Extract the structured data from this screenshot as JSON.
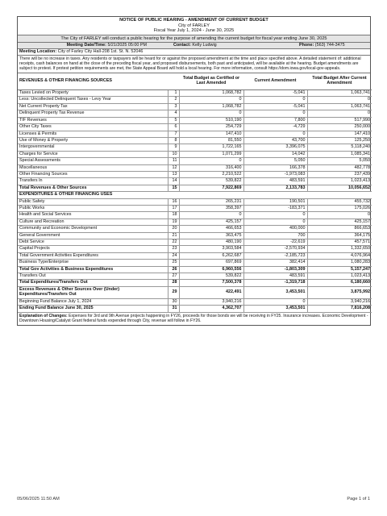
{
  "header": {
    "title": "NOTICE OF PUBLIC HEARING - AMENDMENT OF CURRENT BUDGET",
    "city": "City of FARLEY",
    "fiscal_year": "Fiscal Year July 1, 2024 - June 30, 2025"
  },
  "intro": "The City of FARLEY will conduct a public hearing for the purpose of amending the current budget for fiscal year ending June 30, 2025",
  "meeting": {
    "datetime_label": "Meeting Date/Time:",
    "datetime_value": "5/21/2025 05:00 PM",
    "contact_label": "Contact:",
    "contact_value": "Kelly Ludwig",
    "phone_label": "Phone:",
    "phone_value": "(563) 744-3475",
    "location_label": "Meeting Location:",
    "location_value": "City of Farley City Hall-208 1st. St. N. 52046"
  },
  "description": "There will be no increase in taxes. Any residents or taxpayers will be heard for or against the proposed amendment at the time and place specified above. A detailed statement of: additional receipts, cash balances on hand at the close of the preceding fiscal year, and proposed disbursements, both past and anticipated, will be available at the hearing. Budget amendments are subject to protest. If protest petition requirements are met, the State Appeal Board will hold a local hearing. For more information, consult https://dom.iowa.gov/local-gov-appeals.",
  "columns": {
    "label": "REVENUES & OTHER FINANCING SOURCES",
    "certified": "Total Budget as Certified or Last Amended",
    "amendment": "Current Amendment",
    "after": "Total Budget After Current Amendment"
  },
  "expenditures_header": "EXPENDITURES & OTHER FINANCING USES",
  "rows": [
    {
      "label": "Taxes Levied on Property",
      "n": "1",
      "certified": "1,068,782",
      "amendment": "-5,041",
      "after": "1,063,741",
      "bold": false
    },
    {
      "label": "Less: Uncollected Delinquent Taxes - Levy Year",
      "n": "2",
      "certified": "0",
      "amendment": "0",
      "after": "0",
      "bold": false
    },
    {
      "label": "Net Current Property Tax",
      "n": "3",
      "certified": "1,068,782",
      "amendment": "-5,041",
      "after": "1,063,741",
      "bold": false
    },
    {
      "label": "Delinquent Property Tax Revenue",
      "n": "4",
      "certified": "0",
      "amendment": "0",
      "after": "0",
      "bold": false
    },
    {
      "label": "TIF Revenues",
      "n": "5",
      "certified": "510,190",
      "amendment": "7,800",
      "after": "517,990",
      "bold": false
    },
    {
      "label": "Other City Taxes",
      "n": "6",
      "certified": "254,729",
      "amendment": "-4,729",
      "after": "250,000",
      "bold": false
    },
    {
      "label": "Licenses & Permits",
      "n": "7",
      "certified": "147,410",
      "amendment": "0",
      "after": "147,410",
      "bold": false
    },
    {
      "label": "Use of Money & Property",
      "n": "8",
      "certified": "81,550",
      "amendment": "43,700",
      "after": "125,250",
      "bold": false
    },
    {
      "label": "Intergovernmental",
      "n": "9",
      "certified": "1,722,165",
      "amendment": "3,396,075",
      "after": "5,118,240",
      "bold": false
    },
    {
      "label": "Charges for Service",
      "n": "10",
      "certified": "1,071,299",
      "amendment": "14,042",
      "after": "1,085,341",
      "bold": false
    },
    {
      "label": "Special Assessments",
      "n": "11",
      "certified": "0",
      "amendment": "5,050",
      "after": "5,050",
      "bold": false
    },
    {
      "label": "Miscellaneous",
      "n": "12",
      "certified": "316,400",
      "amendment": "166,378",
      "after": "482,778",
      "bold": false
    },
    {
      "label": "Other Financing Sources",
      "n": "13",
      "certified": "2,210,522",
      "amendment": "-1,973,083",
      "after": "237,439",
      "bold": false
    },
    {
      "label": "Transfers In",
      "n": "14",
      "certified": "539,822",
      "amendment": "483,591",
      "after": "1,023,413",
      "bold": false
    },
    {
      "label": "Total Revenues & Other Sources",
      "n": "15",
      "certified": "7,922,869",
      "amendment": "2,133,783",
      "after": "10,056,652",
      "bold": true
    }
  ],
  "expenditure_rows": [
    {
      "label": "Public Safety",
      "n": "16",
      "certified": "265,231",
      "amendment": "190,501",
      "after": "455,732",
      "bold": false
    },
    {
      "label": "Public Works",
      "n": "17",
      "certified": "358,397",
      "amendment": "-183,371",
      "after": "175,026",
      "bold": false
    },
    {
      "label": "Health and Social Services",
      "n": "18",
      "certified": "0",
      "amendment": "0",
      "after": "0",
      "bold": false
    },
    {
      "label": "Culture and Recreation",
      "n": "19",
      "certified": "425,157",
      "amendment": "0",
      "after": "425,157",
      "bold": false
    },
    {
      "label": "Community and Economic Development",
      "n": "20",
      "certified": "466,653",
      "amendment": "400,000",
      "after": "866,653",
      "bold": false
    },
    {
      "label": "General Government",
      "n": "21",
      "certified": "363,475",
      "amendment": "700",
      "after": "364,175",
      "bold": false
    },
    {
      "label": "Debt Service",
      "n": "22",
      "certified": "480,190",
      "amendment": "-22,619",
      "after": "457,571",
      "bold": false
    },
    {
      "label": "Capital Projects",
      "n": "23",
      "certified": "3,903,584",
      "amendment": "-2,570,934",
      "after": "1,332,650",
      "bold": false
    },
    {
      "label": "Total Government Activities Expenditures",
      "n": "24",
      "certified": "6,262,687",
      "amendment": "-2,185,723",
      "after": "4,076,964",
      "bold": false
    },
    {
      "label": "Business Type/Enterprise",
      "n": "25",
      "certified": "697,869",
      "amendment": "382,414",
      "after": "1,080,283",
      "bold": false
    },
    {
      "label": "Total Gov Activities & Business Expenditures",
      "n": "26",
      "certified": "6,960,556",
      "amendment": "-1,803,309",
      "after": "5,157,247",
      "bold": true
    },
    {
      "label": "Transfers Out",
      "n": "27",
      "certified": "539,822",
      "amendment": "483,591",
      "after": "1,023,413",
      "bold": false
    },
    {
      "label": "Total Expenditures/Transfers Out",
      "n": "28",
      "certified": "7,500,378",
      "amendment": "-1,319,718",
      "after": "6,180,660",
      "bold": true
    },
    {
      "label": "Excess Revenues & Other Sources Over (Under) Expenditures/Transfers Out",
      "n": "29",
      "certified": "422,491",
      "amendment": "3,453,501",
      "after": "3,875,992",
      "bold": true,
      "tall": true
    },
    {
      "label": "Beginning Fund Balance July 1, 2024",
      "n": "30",
      "certified": "3,940,216",
      "amendment": "0",
      "after": "3,940,216",
      "bold": false
    },
    {
      "label": "Ending Fund Balance June 30, 2025",
      "n": "31",
      "certified": "4,362,707",
      "amendment": "3,453,501",
      "after": "7,816,208",
      "bold": true
    }
  ],
  "explanation_label": "Explanation of Changes:",
  "explanation": "Expenses for 3rd and 9th Avenue projects happening in FY26, proceeds for those bonds we will be receiving in FY25. Insurance increases. Economic Development - Downtown Housing/Catalyst Grant federal funds expended through City, revenue will follow in FY26.",
  "footer": {
    "timestamp": "05/06/2025 11:50 AM",
    "page": "Page 1 of 1"
  }
}
